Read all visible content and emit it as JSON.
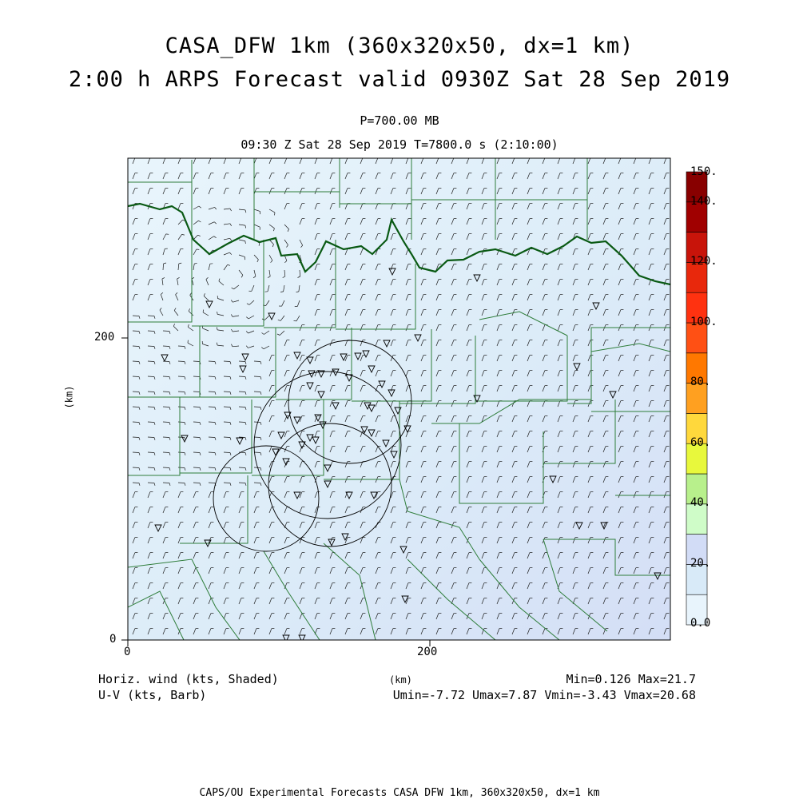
{
  "header": {
    "title_line1": "CASA_DFW 1km (360x320x50, dx=1 km)",
    "title_line2": "2:00 h ARPS Forecast valid 0930Z Sat 28 Sep 2019",
    "level": "P=700.00 MB",
    "time_line": "09:30 Z Sat 28 Sep 2019   T=7800.0 s (2:10:00)"
  },
  "axes": {
    "y_label": "(km)",
    "x_label": "(km)",
    "y_ticks": [
      "200",
      "0"
    ],
    "x_ticks": [
      "0",
      "200"
    ]
  },
  "colorbar": {
    "labels": [
      "150.",
      "140.",
      "120.",
      "100.",
      "80.",
      "60.",
      "40.",
      "20.",
      "0.0"
    ],
    "colors": [
      "#e8f4fc",
      "#d8eaf8",
      "#d2dcf6",
      "#cffcc8",
      "#b8f08c",
      "#e8f83c",
      "#ffd83c",
      "#ffa020",
      "#ff7800",
      "#ff5014",
      "#ff3210",
      "#e8280c",
      "#c8140a",
      "#a00000",
      "#880000"
    ]
  },
  "footer": {
    "field1": "Horiz. wind (kts, Shaded)",
    "field2": "U-V (kts, Barb)",
    "minmax": "Min=0.126  Max=21.7",
    "uv_minmax": "Umin=-7.72  Umax=7.87  Vmin=-3.43  Vmax=20.68",
    "credit": "CAPS/OU Experimental Forecasts  CASA DFW 1km, 360x320x50, dx=1 km"
  },
  "map": {
    "base_color": "#e6f3fb",
    "border_color": "#2e7d3a",
    "river_color": "#0a5a14"
  }
}
